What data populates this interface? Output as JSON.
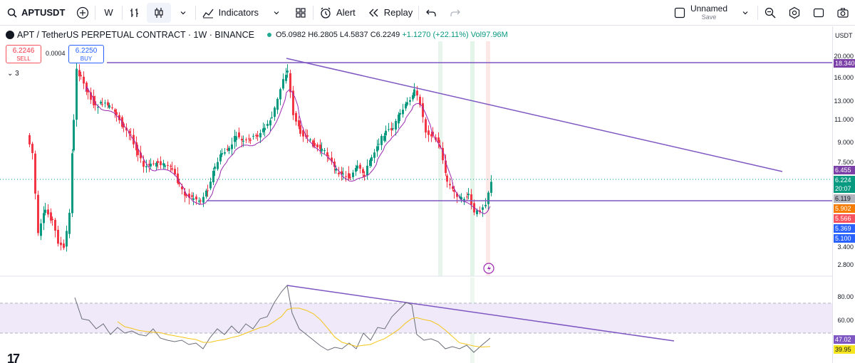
{
  "toolbar": {
    "symbol": "APTUSDT",
    "interval": "W",
    "indicators_label": "Indicators",
    "alert_label": "Alert",
    "replay_label": "Replay",
    "layout_name": "Unnamed",
    "layout_status": "Save"
  },
  "legend": {
    "title": "APT / TetherUS PERPETUAL CONTRACT · 1W · BINANCE",
    "open": "O5.0982",
    "high": "H6.2805",
    "low": "L4.5837",
    "close": "C6.2249",
    "change": "+1.1270 (+22.11%)",
    "volume": "Vol97.96M"
  },
  "trade": {
    "sell_price": "6.2246",
    "sell_label": "SELL",
    "spread": "0.0004",
    "buy_price": "6.2250",
    "buy_label": "BUY",
    "collapsed_count": "3"
  },
  "price_axis": {
    "currency": "USDT",
    "labels": [
      "20.000",
      "16.000",
      "13.000",
      "11.000",
      "9.000",
      "7.500",
      "3.400",
      "2.800"
    ],
    "rsi_labels": [
      "80.00",
      "60.00"
    ],
    "tags": [
      {
        "text": "18.340",
        "color": "#7b3fa8"
      },
      {
        "text": "6.455",
        "color": "#7b3fa8"
      },
      {
        "text": "6.224",
        "color": "#089981"
      },
      {
        "text": "20:07",
        "color": "#089981"
      },
      {
        "text": "6.119",
        "color": "#b2b5be"
      },
      {
        "text": "5.902",
        "color": "#f57c00"
      },
      {
        "text": "5.566",
        "color": "#f7525f"
      },
      {
        "text": "5.369",
        "color": "#2962ff"
      },
      {
        "text": "5.100",
        "color": "#2962ff"
      },
      {
        "text": "47.02",
        "color": "#7e57c2"
      },
      {
        "text": "39.95",
        "color": "#f5e51e"
      }
    ]
  },
  "colors": {
    "up": "#089981",
    "down": "#f23645",
    "trendline": "#7e57c2",
    "ma": "#9c27b0",
    "rsi": "#6a6d78",
    "rsi_ma": "#f5c518"
  },
  "branding": "17"
}
